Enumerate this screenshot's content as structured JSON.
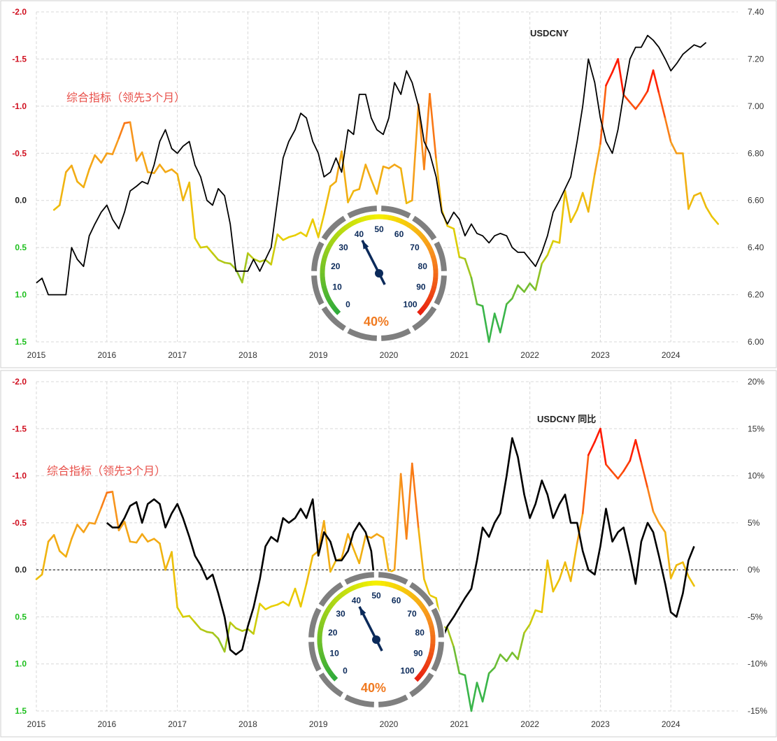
{
  "chart_data": [
    {
      "type": "line",
      "series_label_indicator": "综合指标（领先3个月）",
      "series_label_usd": "USDCNY",
      "x_ticks": [
        "2015",
        "2016",
        "2017",
        "2018",
        "2019",
        "2020",
        "2021",
        "2022",
        "2023",
        "2024"
      ],
      "y_left_ticks": [
        "-2.0",
        "-1.5",
        "-1.0",
        "-0.5",
        "0.0",
        "0.5",
        "1.0",
        "1.5"
      ],
      "y_left_lim": [
        -2.0,
        1.5
      ],
      "y_left_inverted": true,
      "y_right_ticks": [
        "7.40",
        "7.20",
        "7.00",
        "6.80",
        "6.60",
        "6.40",
        "6.20",
        "6.00"
      ],
      "y_right_lim": [
        6.0,
        7.4
      ],
      "xlim": [
        2015.0,
        2024.95
      ],
      "indicator": {
        "x": [
          2015.25,
          2015.33,
          2015.42,
          2015.5,
          2015.58,
          2015.67,
          2015.75,
          2015.83,
          2015.92,
          2016.0,
          2016.08,
          2016.17,
          2016.25,
          2016.33,
          2016.42,
          2016.5,
          2016.58,
          2016.67,
          2016.75,
          2016.83,
          2016.92,
          2017.0,
          2017.08,
          2017.17,
          2017.25,
          2017.33,
          2017.42,
          2017.5,
          2017.58,
          2017.67,
          2017.75,
          2017.83,
          2017.92,
          2018.0,
          2018.08,
          2018.17,
          2018.25,
          2018.33,
          2018.42,
          2018.5,
          2018.58,
          2018.67,
          2018.75,
          2018.83,
          2018.92,
          2019.0,
          2019.08,
          2019.17,
          2019.25,
          2019.33,
          2019.42,
          2019.5,
          2019.58,
          2019.67,
          2019.75,
          2019.83,
          2019.92,
          2020.0,
          2020.08,
          2020.17,
          2020.25,
          2020.33,
          2020.42,
          2020.5,
          2020.58,
          2020.67,
          2020.75,
          2020.83,
          2020.92,
          2021.0,
          2021.08,
          2021.17,
          2021.25,
          2021.33,
          2021.42,
          2021.5,
          2021.58,
          2021.67,
          2021.75,
          2021.83,
          2021.92,
          2022.0,
          2022.08,
          2022.17,
          2022.25,
          2022.33,
          2022.42,
          2022.5,
          2022.58,
          2022.67,
          2022.75,
          2022.83,
          2022.92,
          2023.0,
          2023.08,
          2023.17,
          2023.25,
          2023.33,
          2023.42,
          2023.5,
          2023.58,
          2023.67,
          2023.75,
          2023.83,
          2023.92,
          2024.0,
          2024.08,
          2024.17,
          2024.25,
          2024.33,
          2024.42,
          2024.5,
          2024.58,
          2024.67
        ],
        "y": [
          0.1,
          0.05,
          -0.3,
          -0.37,
          -0.2,
          -0.14,
          -0.33,
          -0.48,
          -0.4,
          -0.5,
          -0.49,
          -0.66,
          -0.82,
          -0.83,
          -0.42,
          -0.51,
          -0.3,
          -0.29,
          -0.38,
          -0.3,
          -0.33,
          -0.28,
          0.0,
          -0.19,
          0.4,
          0.5,
          0.49,
          0.56,
          0.63,
          0.66,
          0.67,
          0.73,
          0.87,
          0.56,
          0.62,
          0.65,
          0.63,
          0.68,
          0.36,
          0.42,
          0.39,
          0.37,
          0.34,
          0.38,
          0.2,
          0.39,
          0.15,
          -0.15,
          -0.2,
          -0.52,
          0.02,
          -0.1,
          -0.12,
          -0.38,
          -0.22,
          -0.07,
          -0.36,
          -0.34,
          -0.38,
          -0.34,
          0.03,
          0.0,
          -1.02,
          -0.33,
          -1.13,
          -0.44,
          0.1,
          0.27,
          0.3,
          0.6,
          0.62,
          0.82,
          1.1,
          1.12,
          1.5,
          1.2,
          1.4,
          1.1,
          1.04,
          0.9,
          0.97,
          0.88,
          0.95,
          0.67,
          0.58,
          0.43,
          0.45,
          -0.1,
          0.23,
          0.1,
          -0.08,
          0.12,
          -0.28,
          -0.6,
          -1.22,
          -1.36,
          -1.5,
          -1.12,
          -1.04,
          -0.97,
          -1.05,
          -1.16,
          -1.38,
          -1.14,
          -0.87,
          -0.62,
          -0.5,
          -0.5,
          0.09,
          -0.05,
          -0.08,
          0.07,
          0.17,
          0.25
        ]
      },
      "usdcny": {
        "x": [
          2015.0,
          2015.08,
          2015.17,
          2015.25,
          2015.33,
          2015.42,
          2015.5,
          2015.58,
          2015.67,
          2015.75,
          2015.83,
          2015.92,
          2016.0,
          2016.08,
          2016.17,
          2016.25,
          2016.33,
          2016.42,
          2016.5,
          2016.58,
          2016.67,
          2016.75,
          2016.83,
          2016.92,
          2017.0,
          2017.08,
          2017.17,
          2017.25,
          2017.33,
          2017.42,
          2017.5,
          2017.58,
          2017.67,
          2017.75,
          2017.83,
          2017.92,
          2018.0,
          2018.08,
          2018.17,
          2018.25,
          2018.33,
          2018.42,
          2018.5,
          2018.58,
          2018.67,
          2018.75,
          2018.83,
          2018.92,
          2019.0,
          2019.08,
          2019.17,
          2019.25,
          2019.33,
          2019.42,
          2019.5,
          2019.58,
          2019.67,
          2019.75,
          2019.83,
          2019.92,
          2020.0,
          2020.08,
          2020.17,
          2020.25,
          2020.33,
          2020.42,
          2020.5,
          2020.58,
          2020.67,
          2020.75,
          2020.83,
          2020.92,
          2021.0,
          2021.08,
          2021.17,
          2021.25,
          2021.33,
          2021.42,
          2021.5,
          2021.58,
          2021.67,
          2021.75,
          2021.83,
          2021.92,
          2022.0,
          2022.08,
          2022.17,
          2022.25,
          2022.33,
          2022.42,
          2022.5,
          2022.58,
          2022.67,
          2022.75,
          2022.83,
          2022.92,
          2023.0,
          2023.08,
          2023.17,
          2023.25,
          2023.33,
          2023.42,
          2023.5,
          2023.58,
          2023.67,
          2023.75,
          2023.83,
          2023.92,
          2024.0,
          2024.08,
          2024.17,
          2024.25,
          2024.33,
          2024.42,
          2024.5
        ],
        "y": [
          6.25,
          6.27,
          6.2,
          6.2,
          6.2,
          6.2,
          6.4,
          6.35,
          6.32,
          6.45,
          6.5,
          6.55,
          6.58,
          6.52,
          6.48,
          6.55,
          6.64,
          6.66,
          6.68,
          6.67,
          6.75,
          6.85,
          6.9,
          6.82,
          6.8,
          6.83,
          6.85,
          6.75,
          6.7,
          6.6,
          6.58,
          6.65,
          6.62,
          6.5,
          6.3,
          6.3,
          6.3,
          6.35,
          6.3,
          6.35,
          6.4,
          6.6,
          6.78,
          6.85,
          6.9,
          6.97,
          6.95,
          6.85,
          6.8,
          6.7,
          6.72,
          6.78,
          6.72,
          6.9,
          6.88,
          7.05,
          7.05,
          6.95,
          6.9,
          6.88,
          6.95,
          7.1,
          7.05,
          7.15,
          7.1,
          7.0,
          6.85,
          6.8,
          6.7,
          6.55,
          6.5,
          6.55,
          6.52,
          6.45,
          6.5,
          6.46,
          6.45,
          6.42,
          6.45,
          6.46,
          6.45,
          6.4,
          6.38,
          6.38,
          6.35,
          6.32,
          6.38,
          6.45,
          6.55,
          6.6,
          6.65,
          6.7,
          6.85,
          7.0,
          7.2,
          7.1,
          6.95,
          6.85,
          6.8,
          6.9,
          7.05,
          7.2,
          7.25,
          7.25,
          7.3,
          7.28,
          7.25,
          7.2,
          7.15,
          7.18,
          7.22,
          7.24,
          7.26,
          7.25,
          7.27
        ]
      }
    },
    {
      "type": "line",
      "series_label_indicator": "综合指标（领先3个月）",
      "series_label_usd": "USDCNY  同比",
      "x_ticks": [
        "2015",
        "2016",
        "2017",
        "2018",
        "2019",
        "2020",
        "2021",
        "2022",
        "2023",
        "2024"
      ],
      "y_left_ticks": [
        "-2.0",
        "-1.5",
        "-1.0",
        "-0.5",
        "0.0",
        "0.5",
        "1.0",
        "1.5"
      ],
      "y_left_lim": [
        -2.0,
        1.5
      ],
      "y_left_inverted": true,
      "y_right_ticks": [
        "20%",
        "15%",
        "10%",
        "5%",
        "0%",
        "-5%",
        "-10%",
        "-15%"
      ],
      "y_right_lim": [
        -15,
        20
      ],
      "xlim": [
        2015.0,
        2024.95
      ],
      "indicator": {
        "x": [
          2015.0,
          2015.08,
          2015.17,
          2015.25,
          2015.33,
          2015.42,
          2015.5,
          2015.58,
          2015.67,
          2015.75,
          2015.83,
          2015.92,
          2016.0,
          2016.08,
          2016.17,
          2016.25,
          2016.33,
          2016.42,
          2016.5,
          2016.58,
          2016.67,
          2016.75,
          2016.83,
          2016.92,
          2017.0,
          2017.08,
          2017.17,
          2017.25,
          2017.33,
          2017.42,
          2017.5,
          2017.58,
          2017.67,
          2017.75,
          2017.83,
          2017.92,
          2018.0,
          2018.08,
          2018.17,
          2018.25,
          2018.33,
          2018.42,
          2018.5,
          2018.58,
          2018.67,
          2018.75,
          2018.83,
          2018.92,
          2019.0,
          2019.08,
          2019.17,
          2019.25,
          2019.33,
          2019.42,
          2019.5,
          2019.58,
          2019.67,
          2019.75,
          2019.83,
          2019.92,
          2020.0,
          2020.08,
          2020.17,
          2020.25,
          2020.33,
          2020.42,
          2020.5,
          2020.58,
          2020.67,
          2020.75,
          2020.83,
          2020.92,
          2021.0,
          2021.08,
          2021.17,
          2021.25,
          2021.33,
          2021.42,
          2021.5,
          2021.58,
          2021.67,
          2021.75,
          2021.83,
          2021.92,
          2022.0,
          2022.08,
          2022.17,
          2022.25,
          2022.33,
          2022.42,
          2022.5,
          2022.58,
          2022.67,
          2022.75,
          2022.83,
          2022.92,
          2023.0,
          2023.08,
          2023.17,
          2023.25,
          2023.33,
          2023.42,
          2023.5,
          2023.58,
          2023.67,
          2023.75,
          2023.83,
          2023.92,
          2024.0,
          2024.08,
          2024.17,
          2024.25,
          2024.33
        ],
        "y": [
          0.1,
          0.05,
          -0.3,
          -0.37,
          -0.2,
          -0.14,
          -0.33,
          -0.48,
          -0.4,
          -0.5,
          -0.49,
          -0.66,
          -0.82,
          -0.83,
          -0.42,
          -0.51,
          -0.3,
          -0.29,
          -0.38,
          -0.3,
          -0.33,
          -0.28,
          0.0,
          -0.19,
          0.4,
          0.5,
          0.49,
          0.56,
          0.63,
          0.66,
          0.67,
          0.73,
          0.87,
          0.56,
          0.62,
          0.65,
          0.63,
          0.68,
          0.36,
          0.42,
          0.39,
          0.37,
          0.34,
          0.38,
          0.2,
          0.39,
          0.15,
          -0.15,
          -0.2,
          -0.52,
          0.02,
          -0.1,
          -0.12,
          -0.38,
          -0.22,
          -0.07,
          -0.36,
          -0.34,
          -0.38,
          -0.34,
          0.03,
          0.0,
          -1.02,
          -0.33,
          -1.13,
          -0.44,
          0.1,
          0.27,
          0.3,
          0.6,
          0.62,
          0.82,
          1.1,
          1.12,
          1.5,
          1.2,
          1.4,
          1.1,
          1.04,
          0.9,
          0.97,
          0.88,
          0.95,
          0.67,
          0.58,
          0.43,
          0.45,
          -0.1,
          0.23,
          0.1,
          -0.08,
          0.12,
          -0.28,
          -0.6,
          -1.22,
          -1.36,
          -1.5,
          -1.12,
          -1.04,
          -0.97,
          -1.05,
          -1.16,
          -1.38,
          -1.14,
          -0.87,
          -0.62,
          -0.5,
          -0.4,
          0.09,
          -0.05,
          -0.08,
          0.07,
          0.17
        ]
      },
      "usdcny": {
        "x": [
          2016.0,
          2016.08,
          2016.17,
          2016.25,
          2016.33,
          2016.42,
          2016.5,
          2016.58,
          2016.67,
          2016.75,
          2016.83,
          2016.92,
          2017.0,
          2017.08,
          2017.17,
          2017.25,
          2017.33,
          2017.42,
          2017.5,
          2017.58,
          2017.67,
          2017.75,
          2017.83,
          2017.92,
          2018.0,
          2018.08,
          2018.17,
          2018.25,
          2018.33,
          2018.42,
          2018.5,
          2018.58,
          2018.67,
          2018.75,
          2018.83,
          2018.92,
          2019.0,
          2019.08,
          2019.17,
          2019.25,
          2019.33,
          2019.42,
          2019.5,
          2019.58,
          2019.67,
          2019.75,
          2019.83,
          2019.92,
          2020.0,
          2020.08,
          2020.17,
          2020.25,
          2020.33,
          2020.42,
          2020.5,
          2020.58,
          2020.67,
          2020.75,
          2020.83,
          2020.92,
          2021.0,
          2021.08,
          2021.17,
          2021.25,
          2021.33,
          2021.42,
          2021.5,
          2021.58,
          2021.67,
          2021.75,
          2021.83,
          2021.92,
          2022.0,
          2022.08,
          2022.17,
          2022.25,
          2022.33,
          2022.42,
          2022.5,
          2022.58,
          2022.67,
          2022.75,
          2022.83,
          2022.92,
          2023.0,
          2023.08,
          2023.17,
          2023.25,
          2023.33,
          2023.42,
          2023.5,
          2023.58,
          2023.67,
          2023.75,
          2023.83,
          2023.92,
          2024.0,
          2024.08,
          2024.17,
          2024.25,
          2024.33
        ],
        "y": [
          5.0,
          4.5,
          4.5,
          5.5,
          6.8,
          7.2,
          5.0,
          7.0,
          7.5,
          7.0,
          4.5,
          6.0,
          7.0,
          5.5,
          3.5,
          1.5,
          0.5,
          -1.0,
          -0.5,
          -2.5,
          -5.0,
          -8.5,
          -9.0,
          -8.5,
          -6.0,
          -4.0,
          -1.0,
          2.5,
          3.5,
          3.0,
          5.5,
          5.0,
          5.5,
          6.5,
          5.5,
          7.5,
          1.5,
          4.0,
          3.0,
          1.0,
          1.0,
          2.0,
          4.0,
          5.0,
          4.0,
          2.0,
          -3.5,
          -4.5,
          -4.5,
          -5.0,
          -6.0,
          -6.5,
          -7.0,
          -7.5,
          -8.0,
          -10.5,
          -9.0,
          -7.5,
          -6.0,
          -5.0,
          -4.0,
          -3.0,
          -2.0,
          1.0,
          4.5,
          3.5,
          5.0,
          6.0,
          10.0,
          14.0,
          12.0,
          8.0,
          5.5,
          7.0,
          9.5,
          8.0,
          5.5,
          7.0,
          8.0,
          5.0,
          5.0,
          2.0,
          0.0,
          -0.5,
          2.5,
          6.5,
          3.0,
          4.0,
          4.5,
          1.5,
          -1.5,
          3.0,
          5.0,
          4.0,
          1.5,
          -1.5,
          -4.5,
          -5.0,
          -2.5,
          1.0,
          2.5
        ]
      }
    }
  ],
  "gauges": [
    {
      "ticks": [
        "0",
        "10",
        "20",
        "30",
        "40",
        "50",
        "60",
        "70",
        "80",
        "90",
        "100"
      ],
      "value": 40,
      "label": "40%"
    },
    {
      "ticks": [
        "0",
        "10",
        "20",
        "30",
        "40",
        "50",
        "60",
        "70",
        "80",
        "90",
        "100"
      ],
      "value": 40,
      "label": "40%"
    }
  ],
  "colors": {
    "indicator_low": "#39b54a",
    "indicator_mid": "#e8d000",
    "indicator_high": "#ff1a00",
    "usdcny": "#000000",
    "tick_negative": "#d01020",
    "tick_positive": "#20c020",
    "gauge_needle": "#0b2a5a",
    "gauge_value": "#f07a20"
  }
}
